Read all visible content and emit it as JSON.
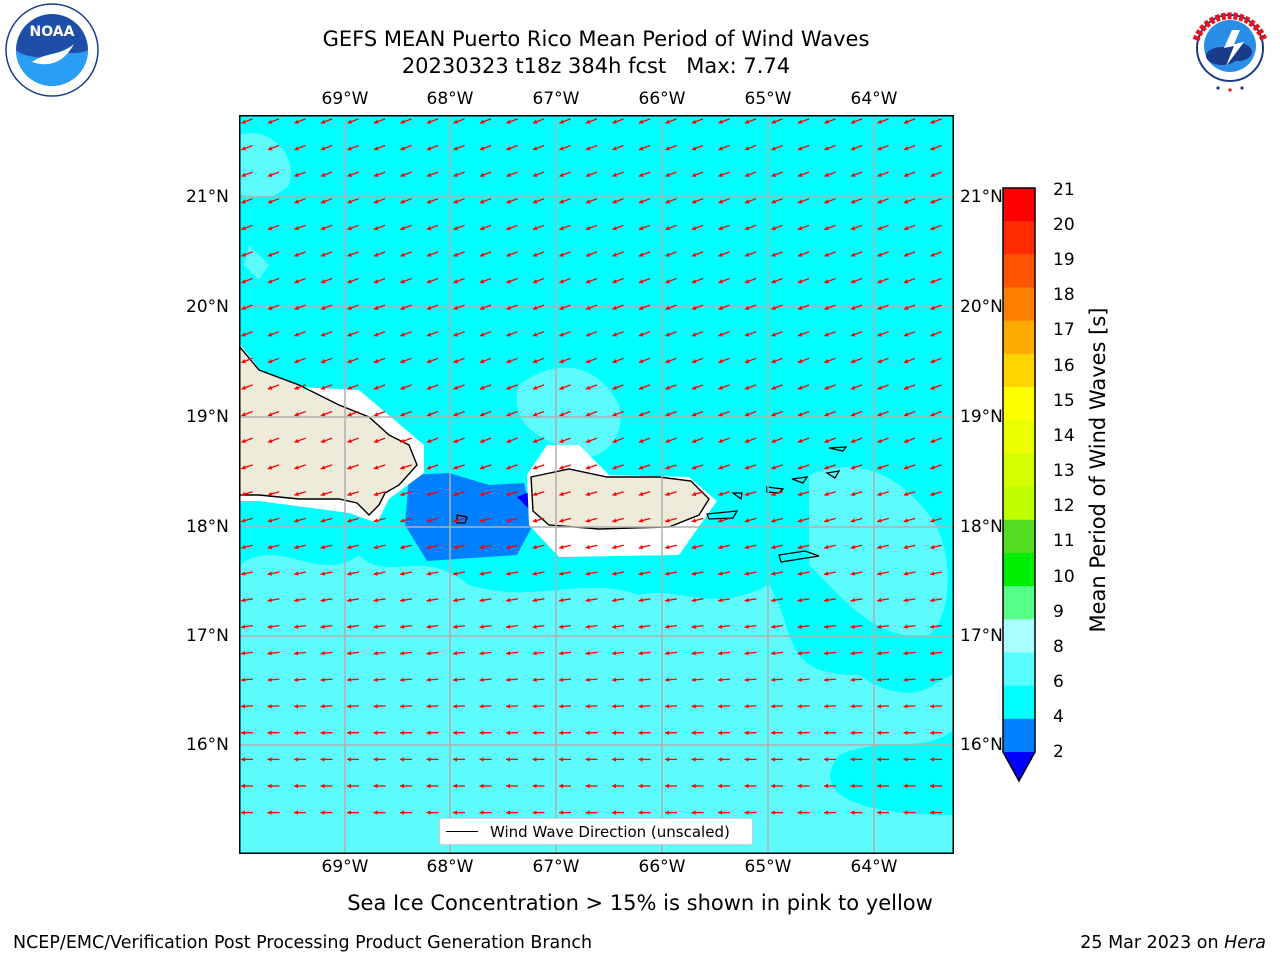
{
  "header": {
    "title_line1": "GEFS MEAN Puerto Rico Mean Period of Wind Waves",
    "title_line2": "20230323 t18z 384h fcst   Max: 7.74"
  },
  "logos": {
    "left": {
      "text": "NOAA",
      "ring_text": "NATIONAL OCEANIC AND ATMOSPHERIC ADMINISTRATION · U.S. DEPARTMENT OF COMMERCE"
    },
    "right": {
      "ring_text": "NATIONAL WEATHER SERVICE"
    }
  },
  "map": {
    "lon_labels": [
      "69°W",
      "68°W",
      "67°W",
      "66°W",
      "65°W",
      "64°W"
    ],
    "lat_labels": [
      "21°N",
      "20°N",
      "19°N",
      "18°N",
      "17°N",
      "16°N"
    ],
    "legend_label": "Wind Wave Direction (unscaled)",
    "colors": {
      "ocean_cyan": "#00ffff",
      "ocean_light": "#59fdfd",
      "ocean_blue": "#0080ff",
      "land": "#efebda",
      "arrow": "#ff0000"
    }
  },
  "colorbar": {
    "title": "Mean Period of Wind Waves [s]",
    "labels": [
      "21",
      "20",
      "19",
      "18",
      "17",
      "16",
      "15",
      "14",
      "13",
      "12",
      "11",
      "10",
      "9",
      "8",
      "6",
      "4",
      "2"
    ],
    "colors": [
      "#ff0000",
      "#ff2a00",
      "#ff5500",
      "#ff8000",
      "#ffaa00",
      "#ffd500",
      "#ffff00",
      "#eaff00",
      "#d4ff00",
      "#bfff00",
      "#55dd22",
      "#00ee00",
      "#55ff88",
      "#aaffff",
      "#59ffff",
      "#00ffff",
      "#0080ff"
    ],
    "extend_color": "#0000ff"
  },
  "notes": {
    "ice": "Sea Ice Concentration > 15% is shown in pink to yellow"
  },
  "footer": {
    "left": "NCEP/EMC/Verification Post Processing Product Generation Branch",
    "date": "25 Mar 2023 on",
    "machine": "Hera"
  }
}
